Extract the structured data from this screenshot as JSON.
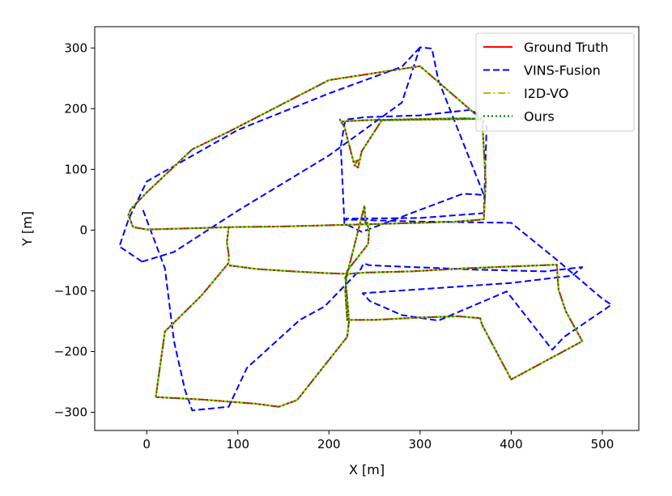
{
  "chart_data": {
    "type": "line",
    "title": "",
    "xlabel": "X [m]",
    "ylabel": "Y [m]",
    "xlim": [
      -57,
      540
    ],
    "ylim": [
      -330,
      335
    ],
    "xticks": [
      0,
      100,
      200,
      300,
      400,
      500
    ],
    "yticks": [
      300,
      200,
      100,
      0,
      -100,
      -200,
      -300
    ],
    "xtick_labels": [
      "0",
      "100",
      "200",
      "300",
      "400",
      "500"
    ],
    "ytick_labels": [
      "300",
      "200",
      "100",
      "0",
      "−100",
      "−200",
      "−300"
    ],
    "grid": false,
    "legend_position": "top-right",
    "series": [
      {
        "name": "Ground Truth",
        "color": "#ff0000",
        "line_style": "solid",
        "x": [
          -18,
          -20,
          -15,
          0,
          50,
          95,
          150,
          200,
          250,
          300,
          340,
          365,
          370,
          372,
          368,
          352,
          305,
          258,
          236,
          232,
          228,
          232,
          227,
          217,
          212,
          213,
          240,
          300,
          350,
          368,
          370,
          300,
          200,
          90,
          50,
          0,
          -16,
          -18,
          null,
          90,
          88,
          90,
          90,
          60,
          20,
          10,
          60,
          120,
          145,
          165,
          220,
          222,
          218,
          222,
          240,
          290,
          350,
          450,
          452,
          460,
          478,
          400,
          368,
          366,
          342,
          300,
          250,
          220,
          218,
          220,
          243,
          244,
          242,
          240,
          239,
          220,
          200,
          160,
          120,
          90
        ],
        "y": [
          33,
          25,
          5,
          1,
          3,
          5,
          6,
          8,
          10,
          12,
          14,
          17,
          18,
          80,
          184,
          183,
          182,
          181,
          130,
          103,
          107,
          115,
          112,
          170,
          182,
          179,
          181,
          183,
          184,
          182,
          179,
          270,
          247,
          162,
          133,
          62,
          37,
          33,
          null,
          5,
          -20,
          -40,
          -54,
          -108,
          -167,
          -275,
          -279,
          -286,
          -291,
          -280,
          -176,
          -150,
          -77,
          -72,
          -70,
          -68,
          -63,
          -57,
          -98,
          -134,
          -183,
          -246,
          -156,
          -145,
          -142,
          -144,
          -148,
          -148,
          -100,
          -67,
          -23,
          -3,
          12,
          12,
          40,
          -72,
          -71,
          -68,
          -64,
          -58
        ]
      },
      {
        "name": "VINS-Fusion",
        "color": "#0000ff",
        "line_style": "dashed",
        "x": [
          -5,
          30,
          100,
          200,
          280,
          300,
          313,
          320,
          370,
          347,
          236,
          217,
          213,
          218,
          240,
          300,
          355,
          365,
          373,
          370,
          300,
          230,
          219,
          218,
          238,
          250,
          300,
          400,
          450,
          500,
          510,
          458,
          445,
          395,
          320,
          280,
          245,
          237,
          400,
          467,
          478,
          437,
          360,
          245,
          238,
          235,
          195,
          168,
          110,
          90,
          50,
          42,
          30,
          20,
          -5,
          null,
          -5,
          -30,
          -20,
          0,
          100,
          200,
          280,
          300
        ],
        "y": [
          -52,
          -36,
          32,
          123,
          210,
          301,
          299,
          247,
          58,
          60,
          -3,
          11,
          138,
          182,
          186,
          189,
          198,
          190,
          170,
          28,
          20,
          19,
          19,
          17,
          17,
          16,
          14,
          12,
          -49,
          -113,
          -123,
          -176,
          -197,
          -101,
          -149,
          -140,
          -117,
          -104,
          -87,
          -75,
          -61,
          -68,
          -65,
          -58,
          -55,
          -64,
          -126,
          -148,
          -227,
          -291,
          -297,
          -263,
          -183,
          -63,
          37,
          null,
          -52,
          -27,
          17,
          80,
          165,
          225,
          269,
          301
        ]
      },
      {
        "name": "I2D-VO",
        "color": "#bfbf00",
        "line_style": "dashdot",
        "x": [
          -18,
          -20,
          -15,
          0,
          50,
          95,
          150,
          200,
          250,
          300,
          340,
          365,
          370,
          372,
          368,
          352,
          305,
          258,
          236,
          232,
          228,
          232,
          227,
          217,
          212,
          213,
          240,
          300,
          350,
          368,
          370,
          300,
          200,
          90,
          50,
          0,
          -16,
          -18,
          null,
          90,
          88,
          90,
          90,
          60,
          20,
          10,
          60,
          120,
          145,
          165,
          220,
          222,
          218,
          222,
          240,
          290,
          350,
          450,
          452,
          460,
          478,
          400,
          368,
          366,
          342,
          300,
          250,
          220,
          218,
          220,
          243,
          244,
          242,
          240,
          239,
          220,
          200,
          160,
          120,
          90
        ],
        "y": [
          33,
          25,
          5,
          1,
          3,
          5,
          6,
          8,
          10,
          12,
          14,
          17,
          18,
          80,
          184,
          183,
          182,
          181,
          130,
          103,
          107,
          115,
          112,
          170,
          182,
          179,
          181,
          183,
          184,
          182,
          179,
          270,
          247,
          162,
          133,
          62,
          37,
          33,
          null,
          5,
          -20,
          -40,
          -54,
          -108,
          -167,
          -275,
          -279,
          -286,
          -291,
          -280,
          -176,
          -150,
          -77,
          -72,
          -70,
          -68,
          -63,
          -57,
          -98,
          -134,
          -183,
          -246,
          -156,
          -145,
          -142,
          -144,
          -148,
          -148,
          -100,
          -67,
          -23,
          -3,
          12,
          12,
          40,
          -72,
          -71,
          -68,
          -64,
          -58
        ]
      },
      {
        "name": "Ours",
        "color": "#008000",
        "line_style": "dotted",
        "x": [
          -18,
          -20,
          -15,
          0,
          50,
          95,
          150,
          200,
          250,
          300,
          340,
          365,
          370,
          372,
          368,
          352,
          305,
          258,
          236,
          232,
          228,
          232,
          227,
          217,
          212,
          213,
          240,
          300,
          350,
          368,
          370,
          300,
          200,
          90,
          50,
          0,
          -16,
          -18,
          null,
          90,
          88,
          90,
          90,
          60,
          20,
          10,
          60,
          120,
          145,
          165,
          220,
          222,
          218,
          222,
          240,
          290,
          350,
          450,
          452,
          460,
          478,
          400,
          368,
          366,
          342,
          300,
          250,
          220,
          218,
          220,
          243,
          244,
          242,
          240,
          239,
          220,
          200,
          160,
          120,
          90
        ],
        "y": [
          33,
          25,
          5,
          1,
          3,
          5,
          6,
          8,
          10,
          12,
          14,
          17,
          18,
          80,
          184,
          183,
          182,
          181,
          130,
          103,
          107,
          115,
          112,
          170,
          182,
          179,
          181,
          183,
          184,
          182,
          179,
          270,
          247,
          162,
          133,
          62,
          37,
          33,
          null,
          5,
          -20,
          -40,
          -54,
          -108,
          -167,
          -275,
          -279,
          -286,
          -291,
          -280,
          -176,
          -150,
          -77,
          -72,
          -70,
          -68,
          -63,
          -57,
          -98,
          -134,
          -183,
          -246,
          -156,
          -145,
          -142,
          -144,
          -148,
          -148,
          -100,
          -67,
          -23,
          -3,
          12,
          12,
          40,
          -72,
          -71,
          -68,
          -64,
          -58
        ]
      }
    ]
  }
}
